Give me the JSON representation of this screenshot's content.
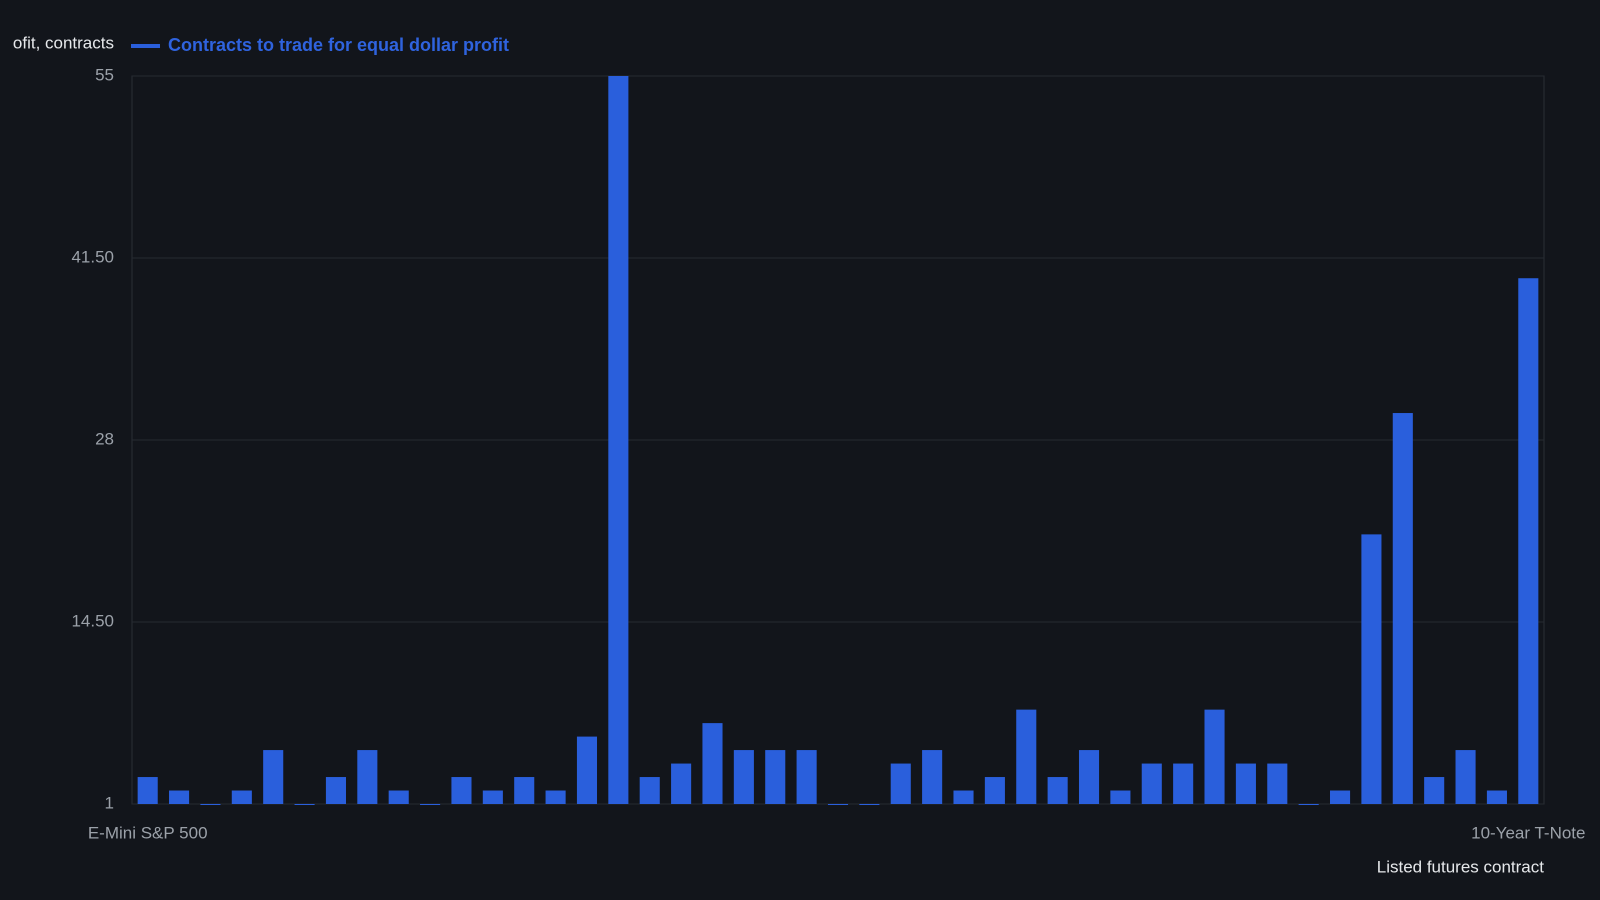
{
  "chart_data": {
    "type": "bar",
    "y_label": "ofit, contracts",
    "x_label": "Listed futures contract",
    "series": [
      {
        "name": "Contracts to trade for equal dollar profit",
        "color": "#2a5fdc",
        "values": [
          3,
          2,
          1,
          2,
          5,
          1,
          3,
          5,
          2,
          1,
          3,
          2,
          3,
          2,
          6,
          55,
          3,
          4,
          7,
          5,
          5,
          5,
          1,
          1,
          4,
          5,
          2,
          3,
          8,
          3,
          5,
          2,
          4,
          4,
          8,
          4,
          4,
          1,
          2,
          21,
          30,
          3,
          5,
          2,
          40
        ]
      }
    ],
    "categories": [
      "E-Mini S&P 500",
      null,
      null,
      null,
      null,
      null,
      null,
      null,
      null,
      null,
      null,
      null,
      null,
      null,
      null,
      null,
      null,
      null,
      null,
      null,
      null,
      null,
      null,
      null,
      null,
      null,
      null,
      null,
      null,
      null,
      null,
      null,
      null,
      null,
      null,
      null,
      null,
      null,
      null,
      null,
      null,
      null,
      null,
      null,
      "10-Year T-Note"
    ],
    "ylim": [
      1,
      55
    ],
    "yticks": [
      1,
      {
        "value": 14.5,
        "label": "14.50"
      },
      28,
      {
        "value": 41.5,
        "label": "41.50"
      },
      55
    ],
    "grid": true,
    "legend": "top-left"
  }
}
